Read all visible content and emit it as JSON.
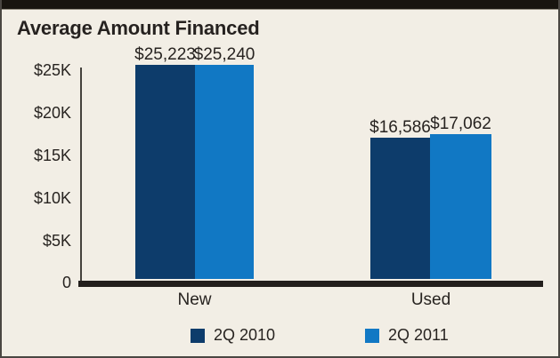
{
  "title": "Average Amount Financed",
  "colors": {
    "background": "#f2eee5",
    "frame_border": "#4a4742",
    "top_band": "#18150f",
    "text": "#272320",
    "axis_line": "#45423d",
    "baseline": "#231f1c",
    "series_2q2010": "#0d3c6b",
    "series_2q2011": "#1178c4"
  },
  "chart_data": {
    "type": "bar",
    "title": "Average Amount Financed",
    "categories": [
      "New",
      "Used"
    ],
    "series": [
      {
        "name": "2Q 2010",
        "color": "#0d3c6b",
        "values": [
          25223,
          16586
        ],
        "labels": [
          "$25,223",
          "$16,586"
        ]
      },
      {
        "name": "2Q 2011",
        "color": "#1178c4",
        "values": [
          25240,
          17062
        ],
        "labels": [
          "$25,240",
          "$17,062"
        ]
      }
    ],
    "y_axis": {
      "ticks": [
        "$25K",
        "$20K",
        "$15K",
        "$10K",
        "$5K",
        "0"
      ],
      "tick_values": [
        25000,
        20000,
        15000,
        10000,
        5000,
        0
      ],
      "max": 25000,
      "unit": "USD"
    },
    "ylim": [
      0,
      25000
    ],
    "grid": false,
    "legend_position": "bottom",
    "value_labels_shown": true
  }
}
